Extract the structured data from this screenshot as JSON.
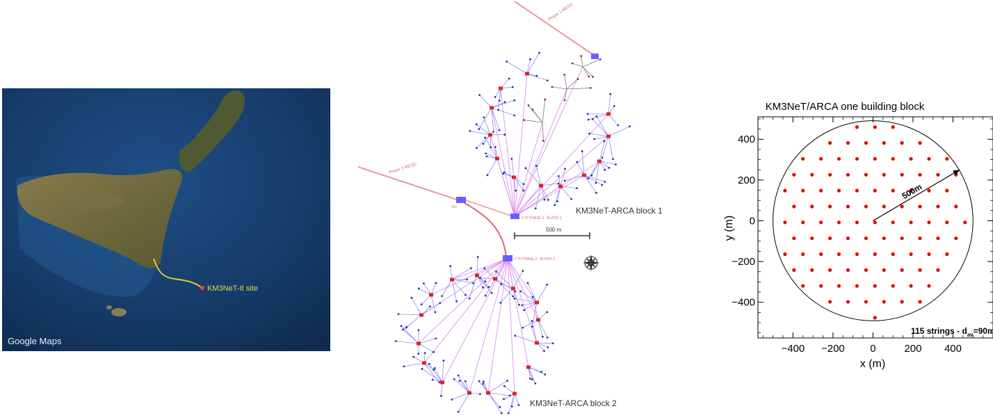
{
  "map": {
    "site_label": "KM3NeT-It site",
    "watermark": "Google Maps"
  },
  "layout": {
    "block1_label": "KM3NeT-ARCA block 1",
    "block2_label": "KM3NeT-ARCA block 2",
    "scale_label": "500 m",
    "phase1_cable": "Phase 1 MEOC",
    "phase2_cable": "Phase 2 MEOC",
    "bu_label": "BU",
    "ctf_block1": "CTF PHASE 2 - BLOCK 1",
    "ctf_block2": "CTF PHASE 2 - BLOCK 2"
  },
  "chart_data": {
    "type": "scatter",
    "title": "KM3NeT/ARCA one building block",
    "xlabel": "x (m)",
    "ylabel": "y (m)",
    "xlim": [
      -575,
      600
    ],
    "ylim": [
      -575,
      510
    ],
    "xticks": [
      -400,
      -200,
      0,
      200,
      400
    ],
    "yticks": [
      -400,
      -200,
      0,
      200,
      400
    ],
    "xtick_labels": [
      "−400",
      "−200",
      "0",
      "200",
      "400"
    ],
    "ytick_labels": [
      "−400",
      "−200",
      "0",
      "200",
      "400"
    ],
    "circle_radius": 500,
    "radius_label": "500m",
    "strings_count": 115,
    "annotation": {
      "main": "115 strings - d",
      "sub": "av",
      "tail": "=90m"
    },
    "marker_color": "#e60000"
  }
}
